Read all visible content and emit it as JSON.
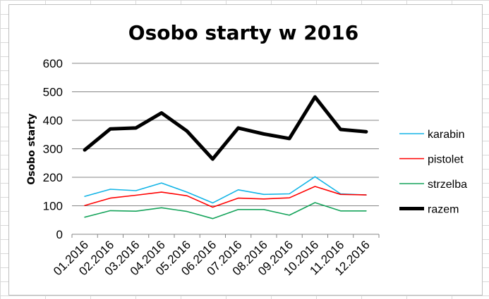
{
  "chart_data": {
    "type": "line",
    "title": "Osobo starty w 2016",
    "xlabel": "",
    "ylabel": "Osobo starty",
    "ylim": [
      0,
      600
    ],
    "yticks": [
      0,
      100,
      200,
      300,
      400,
      500,
      600
    ],
    "grid": "horizontal",
    "legend_position": "right",
    "categories": [
      "01.2016",
      "02.2016",
      "03.2016",
      "04.2016",
      "05.2016",
      "06.2016",
      "07.2016",
      "08.2016",
      "09.2016",
      "10.2016",
      "11.2016",
      "12.2016"
    ],
    "series": [
      {
        "name": "karabin",
        "color": "#12b4e6",
        "width": 1.6,
        "values": [
          133,
          158,
          153,
          180,
          148,
          110,
          156,
          140,
          142,
          202,
          142,
          138
        ]
      },
      {
        "name": "pistolet",
        "color": "#ff0000",
        "width": 1.6,
        "values": [
          101,
          127,
          137,
          148,
          135,
          95,
          127,
          124,
          128,
          168,
          140,
          138
        ]
      },
      {
        "name": "strzelba",
        "color": "#14a35a",
        "width": 1.6,
        "values": [
          60,
          83,
          81,
          93,
          80,
          55,
          87,
          87,
          67,
          111,
          82,
          82
        ]
      },
      {
        "name": "razem",
        "color": "#000000",
        "width": 5,
        "values": [
          296,
          370,
          373,
          426,
          362,
          264,
          373,
          352,
          336,
          482,
          368,
          360
        ]
      }
    ]
  }
}
